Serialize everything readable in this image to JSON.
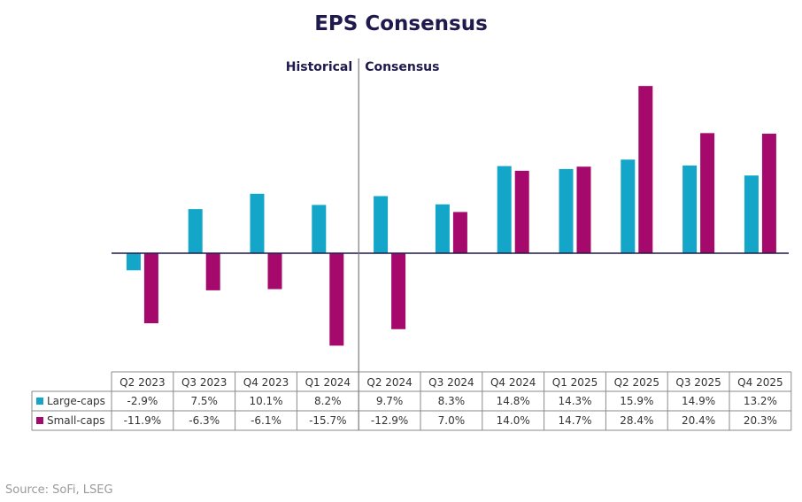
{
  "title": "EPS Consensus",
  "source": "Source: SoFi, LSEG",
  "annotations": {
    "historical": "Historical",
    "consensus": "Consensus"
  },
  "colors": {
    "large": "#14a6c8",
    "small": "#a5096b",
    "axis": "#1f1a4d",
    "divider": "#7a7a7a"
  },
  "chart_data": {
    "type": "bar",
    "title": "EPS Consensus",
    "categories": [
      "Q2 2023",
      "Q3 2023",
      "Q4 2023",
      "Q1 2024",
      "Q2 2024",
      "Q3 2024",
      "Q4 2024",
      "Q1 2025",
      "Q2 2025",
      "Q3 2025",
      "Q4 2025"
    ],
    "series": [
      {
        "name": "Large-caps",
        "values": [
          -2.9,
          7.5,
          10.1,
          8.2,
          9.7,
          8.3,
          14.8,
          14.3,
          15.9,
          14.9,
          13.2
        ],
        "labels": [
          "-2.9%",
          "7.5%",
          "10.1%",
          "8.2%",
          "9.7%",
          "8.3%",
          "14.8%",
          "14.3%",
          "15.9%",
          "14.9%",
          "13.2%"
        ]
      },
      {
        "name": "Small-caps",
        "values": [
          -11.9,
          -6.3,
          -6.1,
          -15.7,
          -12.9,
          7.0,
          14.0,
          14.7,
          28.4,
          20.4,
          20.3
        ],
        "labels": [
          "-11.9%",
          "-6.3%",
          "-6.1%",
          "-15.7%",
          "-12.9%",
          "7.0%",
          "14.0%",
          "14.7%",
          "28.4%",
          "20.4%",
          "20.3%"
        ]
      }
    ],
    "ylim": [
      -20,
      30
    ],
    "grid": false,
    "legend": "table-left",
    "divider_after": "Q1 2024"
  }
}
